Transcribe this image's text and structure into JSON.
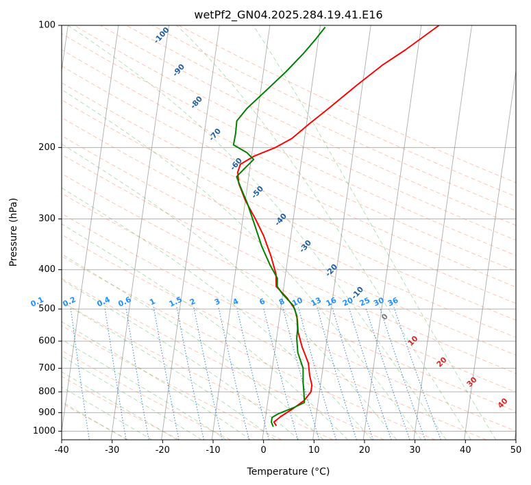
{
  "chart_data": {
    "type": "line",
    "title": "wetPf2_GN04.2025.284.19.41.E16",
    "xlabel": "Temperature (°C)",
    "ylabel": "Pressure (hPa)",
    "xlim": [
      -40,
      50
    ],
    "ylim": [
      1050,
      100
    ],
    "y_scale": "log",
    "grid": true,
    "x_ticks": [
      -40,
      -30,
      -20,
      -10,
      0,
      10,
      20,
      30,
      40,
      50
    ],
    "y_ticks": [
      100,
      200,
      300,
      400,
      500,
      600,
      700,
      800,
      900,
      1000
    ],
    "colors": {
      "temperature": "#ff0000",
      "dewpoint": "#008000",
      "isotherm": "#808080",
      "dry_adiabat": "#ff7f50",
      "moist_adiabat": "#2ca02c",
      "mixing_ratio": "#1f77d4",
      "isotherm_label": "#1f5fa0",
      "mixing_label": "#1e90ff",
      "moist_label": "#d62728"
    },
    "series": [
      {
        "key": "temperature",
        "points": [
          [
            2.4,
            970
          ],
          [
            1.8,
            950
          ],
          [
            3.0,
            920
          ],
          [
            5.2,
            880
          ],
          [
            7.2,
            840
          ],
          [
            8.3,
            800
          ],
          [
            8.3,
            770
          ],
          [
            7.6,
            730
          ],
          [
            7.0,
            680
          ],
          [
            5.3,
            620
          ],
          [
            4.1,
            570
          ],
          [
            3.6,
            530
          ],
          [
            2.8,
            500
          ],
          [
            1.0,
            470
          ],
          [
            -1.5,
            440
          ],
          [
            -1.9,
            410
          ],
          [
            -3.4,
            370
          ],
          [
            -5.4,
            330
          ],
          [
            -7.5,
            300
          ],
          [
            -10.0,
            270
          ],
          [
            -11.8,
            245
          ],
          [
            -12.3,
            230
          ],
          [
            -12.0,
            220
          ],
          [
            -9.5,
            210
          ],
          [
            -5.5,
            200
          ],
          [
            -2.5,
            190
          ],
          [
            0.5,
            175
          ],
          [
            4.0,
            160
          ],
          [
            9.0,
            140
          ],
          [
            13.5,
            125
          ],
          [
            17.5,
            115
          ],
          [
            21.0,
            106
          ],
          [
            23.5,
            100
          ]
        ]
      },
      {
        "key": "dewpoint",
        "points": [
          [
            1.8,
            975
          ],
          [
            1.3,
            950
          ],
          [
            1.3,
            925
          ],
          [
            2.5,
            905
          ],
          [
            5.3,
            875
          ],
          [
            7.3,
            850
          ],
          [
            6.9,
            800
          ],
          [
            6.5,
            760
          ],
          [
            6.1,
            700
          ],
          [
            4.6,
            640
          ],
          [
            4.0,
            590
          ],
          [
            3.9,
            560
          ],
          [
            3.4,
            520
          ],
          [
            2.4,
            490
          ],
          [
            0.0,
            460
          ],
          [
            -1.3,
            440
          ],
          [
            -1.5,
            420
          ],
          [
            -3.3,
            390
          ],
          [
            -5.5,
            350
          ],
          [
            -7.5,
            310
          ],
          [
            -9.5,
            275
          ],
          [
            -11.5,
            248
          ],
          [
            -12.4,
            236
          ],
          [
            -11.0,
            225
          ],
          [
            -9.5,
            214
          ],
          [
            -11.0,
            206
          ],
          [
            -13.9,
            197
          ],
          [
            -13.8,
            185
          ],
          [
            -13.9,
            172
          ],
          [
            -12.2,
            160
          ],
          [
            -9.0,
            145
          ],
          [
            -5.5,
            130
          ],
          [
            -2.5,
            117
          ],
          [
            -0.5,
            108
          ],
          [
            1.0,
            101
          ]
        ]
      }
    ],
    "isotherm_labels": [
      "-100",
      "-90",
      "-80",
      "-70",
      "-60",
      "-50",
      "-40",
      "-30",
      "-20",
      "-10",
      "0"
    ],
    "mixing_ratio_labels": [
      "0.1",
      "0.2",
      "0.4",
      "0.6",
      "1",
      "1.5",
      "2",
      "3",
      "4",
      "6",
      "8",
      "10",
      "13",
      "16",
      "20",
      "25",
      "30",
      "36"
    ],
    "moist_adiabat_labels": [
      "10",
      "20",
      "30",
      "40"
    ]
  }
}
